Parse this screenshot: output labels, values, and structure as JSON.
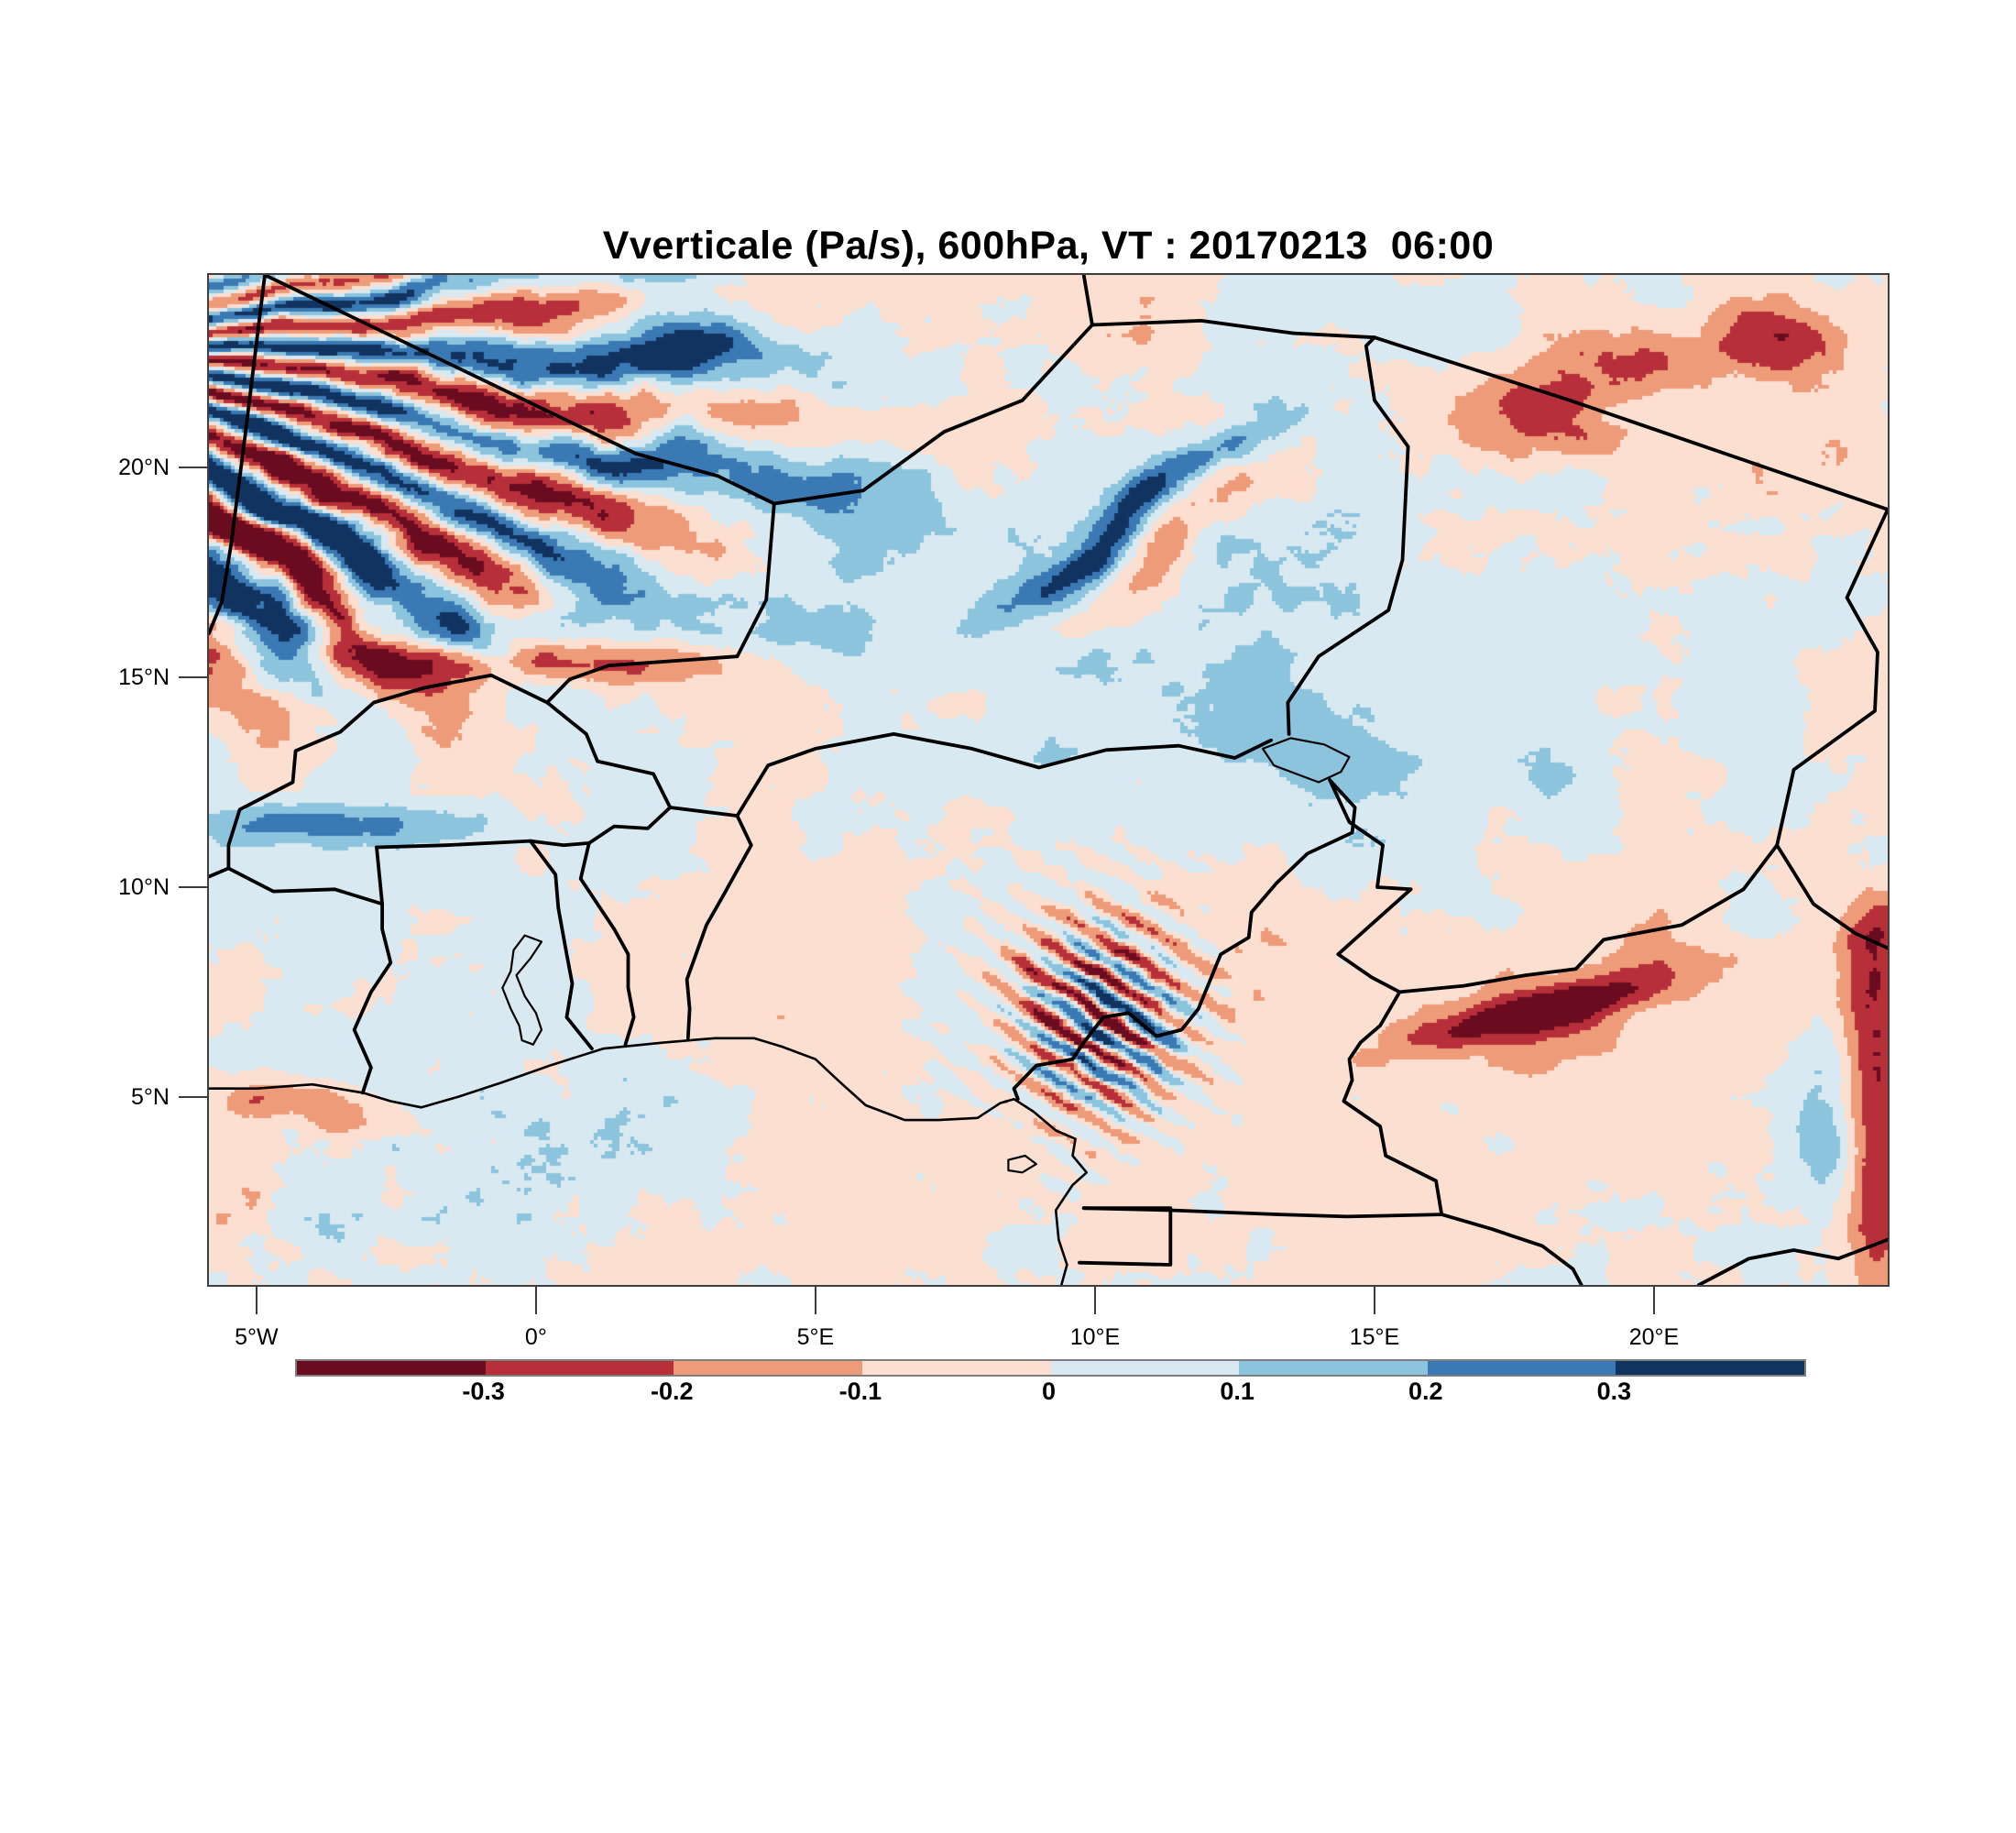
{
  "title": "Vverticale (Pa/s), 600hPa, VT : 20170213  06:00",
  "chart_data": {
    "type": "heatmap",
    "subtype": "filled-contour-map",
    "variable": "Vverticale",
    "units": "Pa/s",
    "pressure_level": "600hPa",
    "valid_time": "20170213  06:00",
    "region": "West and Central Africa",
    "lon_range": [
      -5.85,
      24.18
    ],
    "lat_range": [
      0.52,
      24.59
    ],
    "grid": "on map frame only, no interior gridlines",
    "contour_levels": [
      -0.3,
      -0.2,
      -0.1,
      0,
      0.1,
      0.2,
      0.3
    ],
    "palette": [
      "#6a0c20",
      "#b62f39",
      "#ed9b78",
      "#fbdfd0",
      "#d8e9f1",
      "#8cc3dd",
      "#3a79b3",
      "#11335f"
    ],
    "colorbar_labels": [
      "-0.3",
      "-0.2",
      "-0.1",
      "0",
      "0.1",
      "0.2",
      "0.3"
    ],
    "xticks": [
      {
        "label": "5°W",
        "value": -5
      },
      {
        "label": "0°",
        "value": 0
      },
      {
        "label": "5°E",
        "value": 5
      },
      {
        "label": "10°E",
        "value": 10
      },
      {
        "label": "15°E",
        "value": 15
      },
      {
        "label": "20°E",
        "value": 20
      }
    ],
    "yticks": [
      {
        "label": "5°N",
        "value": 5
      },
      {
        "label": "10°N",
        "value": 10
      },
      {
        "label": "15°N",
        "value": 15
      },
      {
        "label": "20°N",
        "value": 20
      }
    ],
    "approx_features": [
      {
        "desc": "intense alternating ascent/descent wave bands fanning across NW corner (Mali/Mauritania/Algeria)",
        "lon": -3.0,
        "lat": 20.5,
        "amp": "strong"
      },
      {
        "desc": "narrow strong ascent (blue) streak with descent fringe across central Niger",
        "lon": 10.5,
        "lat": 18.7,
        "amp": "strong"
      },
      {
        "desc": "strong descent (dark red) patches NE Niger / Libya border",
        "lon": 18.5,
        "lat": 21.8,
        "amp": "strong"
      },
      {
        "desc": "strong convective couplets over Jos Plateau / Cameroon line",
        "lon": 10.1,
        "lat": 6.9,
        "amp": "strong"
      },
      {
        "desc": "elongated strong descent band over CAR",
        "lon": 18.0,
        "lat": 7.0,
        "amp": "strong"
      },
      {
        "desc": "descent streak along eastern map edge",
        "lon": 24.0,
        "lat": 4.5,
        "amp": "moderate"
      },
      {
        "desc": "descent band with ascent fringe near 15.3N west of 0E",
        "lon": -0.6,
        "lat": 15.3,
        "amp": "moderate"
      },
      {
        "desc": "weak descent (pale pink) dominant over southern half, weak ascent (pale blue) belt over Sahel east of 2E",
        "lon": 10,
        "lat": 12,
        "amp": "weak"
      }
    ],
    "borders": {
      "countries": [
        [
          [
            -4.85,
            24.59
          ],
          [
            -5.2,
            20.8
          ],
          [
            -5.45,
            18.2
          ],
          [
            -5.62,
            16.8
          ],
          [
            -5.85,
            16.05
          ]
        ],
        [
          [
            -4.85,
            24.59
          ],
          [
            1.79,
            20.33
          ]
        ],
        [
          [
            1.79,
            20.33
          ],
          [
            3.25,
            19.8
          ],
          [
            4.26,
            19.14
          ],
          [
            5.85,
            19.45
          ],
          [
            7.3,
            20.85
          ],
          [
            8.7,
            21.6
          ],
          [
            9.95,
            23.4
          ]
        ],
        [
          [
            9.95,
            23.4
          ],
          [
            9.8,
            24.59
          ]
        ],
        [
          [
            9.95,
            23.4
          ],
          [
            11.9,
            23.5
          ],
          [
            13.55,
            23.2
          ]
        ],
        [
          [
            13.55,
            23.2
          ],
          [
            15.0,
            23.1
          ],
          [
            18.5,
            21.6
          ],
          [
            24.18,
            19.0
          ]
        ],
        [
          [
            24.18,
            19.0
          ],
          [
            23.45,
            16.9
          ],
          [
            24.0,
            15.6
          ],
          [
            23.95,
            14.2
          ],
          [
            22.5,
            12.8
          ],
          [
            22.2,
            11.0
          ],
          [
            22.85,
            9.6
          ],
          [
            23.6,
            8.9
          ],
          [
            24.18,
            8.55
          ]
        ],
        [
          [
            4.26,
            19.14
          ],
          [
            4.12,
            16.85
          ],
          [
            3.6,
            15.5
          ],
          [
            1.3,
            15.28
          ],
          [
            0.6,
            14.95
          ],
          [
            0.2,
            14.4
          ]
        ],
        [
          [
            0.2,
            14.4
          ],
          [
            0.9,
            13.65
          ],
          [
            1.1,
            13.0
          ],
          [
            2.1,
            12.7
          ],
          [
            2.4,
            11.9
          ]
        ],
        [
          [
            0.2,
            14.4
          ],
          [
            -0.8,
            15.05
          ],
          [
            -2.0,
            14.75
          ],
          [
            -2.9,
            14.4
          ],
          [
            -3.5,
            13.7
          ],
          [
            -4.3,
            13.25
          ],
          [
            -4.35,
            12.5
          ],
          [
            -5.3,
            11.85
          ],
          [
            -5.5,
            11.0
          ],
          [
            -5.5,
            10.45
          ]
        ],
        [
          [
            -5.5,
            10.45
          ],
          [
            -5.85,
            10.25
          ]
        ],
        [
          [
            -5.5,
            10.45
          ],
          [
            -4.7,
            9.9
          ],
          [
            -3.6,
            9.95
          ],
          [
            -2.75,
            9.6
          ]
        ],
        [
          [
            -2.75,
            9.6
          ],
          [
            -2.85,
            10.95
          ]
        ],
        [
          [
            -2.85,
            10.95
          ],
          [
            -1.6,
            11.0
          ],
          [
            -0.1,
            11.1
          ],
          [
            0.5,
            11.0
          ],
          [
            0.95,
            11.05
          ],
          [
            1.4,
            11.45
          ],
          [
            2.0,
            11.4
          ],
          [
            2.4,
            11.9
          ]
        ],
        [
          [
            -3.1,
            5.1
          ],
          [
            -2.95,
            5.7
          ],
          [
            -3.25,
            6.6
          ],
          [
            -2.95,
            7.5
          ],
          [
            -2.6,
            8.2
          ],
          [
            -2.75,
            9.0
          ],
          [
            -2.75,
            9.6
          ]
        ],
        [
          [
            1.0,
            6.15
          ],
          [
            0.55,
            6.9
          ],
          [
            0.65,
            7.7
          ],
          [
            0.55,
            8.4
          ],
          [
            0.4,
            9.5
          ],
          [
            0.35,
            10.3
          ],
          [
            -0.1,
            11.1
          ]
        ],
        [
          [
            1.6,
            6.25
          ],
          [
            1.75,
            6.9
          ],
          [
            1.65,
            7.6
          ],
          [
            1.65,
            8.4
          ],
          [
            1.4,
            9.0
          ],
          [
            0.8,
            10.2
          ],
          [
            0.95,
            11.05
          ]
        ],
        [
          [
            2.72,
            6.4
          ],
          [
            2.75,
            7.1
          ],
          [
            2.7,
            7.8
          ],
          [
            3.05,
            9.1
          ],
          [
            3.35,
            9.8
          ],
          [
            3.6,
            10.4
          ],
          [
            3.85,
            11.0
          ],
          [
            3.6,
            11.7
          ]
        ],
        [
          [
            3.6,
            11.7
          ],
          [
            2.4,
            11.9
          ]
        ],
        [
          [
            3.6,
            11.7
          ],
          [
            4.15,
            12.9
          ],
          [
            5.0,
            13.3
          ],
          [
            6.4,
            13.65
          ],
          [
            7.8,
            13.3
          ],
          [
            9.0,
            12.85
          ],
          [
            10.2,
            13.27
          ],
          [
            11.5,
            13.37
          ],
          [
            12.5,
            13.08
          ],
          [
            13.15,
            13.5
          ]
        ],
        [
          [
            13.47,
            13.65
          ],
          [
            13.45,
            14.4
          ],
          [
            14.0,
            15.5
          ],
          [
            15.25,
            16.6
          ],
          [
            15.5,
            17.8
          ],
          [
            15.6,
            20.5
          ],
          [
            15.0,
            21.6
          ],
          [
            14.85,
            22.9
          ],
          [
            15.0,
            23.1
          ]
        ],
        [
          [
            14.2,
            12.55
          ],
          [
            14.65,
            11.9
          ],
          [
            14.6,
            11.3
          ],
          [
            13.8,
            10.8
          ],
          [
            13.25,
            10.1
          ],
          [
            12.8,
            9.4
          ],
          [
            12.75,
            8.8
          ],
          [
            12.25,
            8.4
          ],
          [
            11.85,
            7.1
          ],
          [
            11.55,
            6.6
          ],
          [
            11.1,
            6.45
          ],
          [
            10.6,
            7.0
          ],
          [
            10.15,
            6.9
          ],
          [
            9.8,
            6.3
          ],
          [
            9.6,
            5.9
          ],
          [
            8.95,
            5.75
          ],
          [
            8.55,
            5.2
          ],
          [
            8.62,
            4.95
          ]
        ],
        [
          [
            14.2,
            12.55
          ],
          [
            14.55,
            11.55
          ],
          [
            15.15,
            11.0
          ],
          [
            15.05,
            10.0
          ],
          [
            15.65,
            9.95
          ],
          [
            14.85,
            9.0
          ],
          [
            14.35,
            8.4
          ],
          [
            14.95,
            7.85
          ],
          [
            15.45,
            7.5
          ]
        ],
        [
          [
            15.45,
            7.5
          ],
          [
            16.6,
            7.65
          ],
          [
            17.7,
            7.9
          ],
          [
            18.6,
            8.05
          ],
          [
            19.1,
            8.75
          ],
          [
            20.5,
            9.1
          ],
          [
            21.6,
            9.95
          ],
          [
            22.2,
            11.0
          ]
        ],
        [
          [
            15.45,
            7.5
          ],
          [
            15.1,
            6.7
          ],
          [
            14.75,
            6.3
          ],
          [
            14.55,
            5.9
          ],
          [
            14.6,
            5.4
          ],
          [
            14.45,
            4.9
          ],
          [
            15.1,
            4.3
          ],
          [
            15.2,
            3.6
          ],
          [
            16.1,
            3.0
          ],
          [
            16.2,
            2.2
          ]
        ],
        [
          [
            9.8,
            2.35
          ],
          [
            11.35,
            2.3
          ],
          [
            13.3,
            2.2
          ],
          [
            14.5,
            2.15
          ],
          [
            16.2,
            2.2
          ]
        ],
        [
          [
            9.8,
            2.35
          ],
          [
            11.35,
            2.35
          ],
          [
            11.35,
            1.0
          ],
          [
            9.72,
            1.05
          ]
        ],
        [
          [
            16.2,
            2.2
          ],
          [
            17.1,
            1.85
          ],
          [
            18.0,
            1.45
          ],
          [
            18.55,
            0.9
          ],
          [
            18.7,
            0.52
          ]
        ],
        [
          [
            20.8,
            0.52
          ],
          [
            21.7,
            1.15
          ],
          [
            22.5,
            1.35
          ],
          [
            23.3,
            1.15
          ],
          [
            24.18,
            1.6
          ]
        ]
      ],
      "coast": [
        [
          [
            -5.85,
            5.2
          ],
          [
            -5.0,
            5.2
          ],
          [
            -4.0,
            5.3
          ],
          [
            -3.1,
            5.1
          ],
          [
            -2.6,
            4.9
          ],
          [
            -2.05,
            4.75
          ],
          [
            -1.4,
            5.0
          ],
          [
            -0.6,
            5.35
          ],
          [
            0.25,
            5.75
          ],
          [
            1.2,
            6.15
          ],
          [
            2.3,
            6.3
          ],
          [
            3.2,
            6.4
          ],
          [
            3.9,
            6.4
          ],
          [
            4.4,
            6.2
          ],
          [
            5.0,
            5.9
          ],
          [
            5.4,
            5.4
          ],
          [
            5.9,
            4.8
          ],
          [
            6.6,
            4.45
          ],
          [
            7.2,
            4.45
          ],
          [
            7.9,
            4.5
          ],
          [
            8.3,
            4.85
          ],
          [
            8.55,
            4.95
          ],
          [
            8.9,
            4.65
          ],
          [
            9.3,
            4.2
          ],
          [
            9.65,
            4.0
          ],
          [
            9.6,
            3.6
          ],
          [
            9.85,
            3.2
          ],
          [
            9.6,
            2.9
          ],
          [
            9.3,
            2.3
          ],
          [
            9.35,
            1.6
          ],
          [
            9.5,
            1.0
          ],
          [
            9.4,
            0.52
          ]
        ]
      ],
      "lakes": [
        [
          [
            -0.05,
            6.25
          ],
          [
            0.1,
            6.6
          ],
          [
            0.0,
            7.0
          ],
          [
            -0.2,
            7.4
          ],
          [
            -0.35,
            7.9
          ],
          [
            -0.1,
            8.3
          ],
          [
            0.1,
            8.7
          ],
          [
            -0.2,
            8.85
          ],
          [
            -0.4,
            8.5
          ],
          [
            -0.45,
            8.0
          ],
          [
            -0.6,
            7.6
          ],
          [
            -0.45,
            7.1
          ],
          [
            -0.3,
            6.7
          ],
          [
            -0.25,
            6.35
          ],
          [
            -0.05,
            6.25
          ]
        ],
        [
          [
            13.0,
            13.3
          ],
          [
            13.5,
            13.55
          ],
          [
            14.1,
            13.4
          ],
          [
            14.55,
            13.1
          ],
          [
            14.4,
            12.75
          ],
          [
            14.0,
            12.5
          ],
          [
            13.6,
            12.7
          ],
          [
            13.2,
            12.9
          ],
          [
            13.0,
            13.3
          ]
        ],
        [
          [
            8.45,
            3.5
          ],
          [
            8.75,
            3.6
          ],
          [
            8.95,
            3.4
          ],
          [
            8.7,
            3.2
          ],
          [
            8.45,
            3.25
          ],
          [
            8.45,
            3.5
          ]
        ]
      ]
    }
  }
}
